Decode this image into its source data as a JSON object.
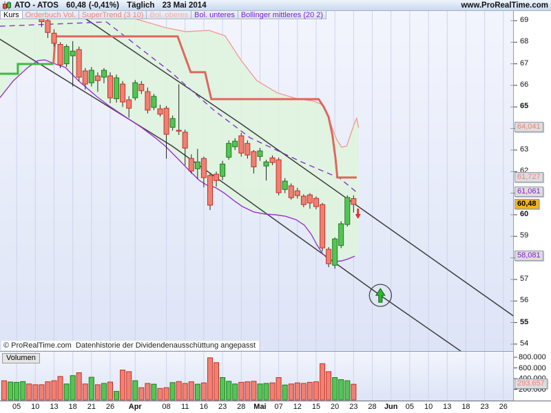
{
  "header": {
    "icon": "candlestick-icon",
    "symbol": "ATO - ATOS",
    "price": "60,48",
    "change": "(-0,41%)",
    "period": "Täglich",
    "date": "23 Mai 2014",
    "site": "www.ProRealTime.com"
  },
  "tabs": [
    {
      "label": "Kurs",
      "color": "#000000",
      "active": true
    },
    {
      "label": "Orderbuch Vol.",
      "color": "#ef837d",
      "active": false
    },
    {
      "label": "SuperTrend (3 10)",
      "color": "#ef837d",
      "active": false
    },
    {
      "label": "Bol. oberes",
      "color": "#f4b0aa",
      "active": false
    },
    {
      "label": "Bol. unteres",
      "color": "#7a1fd0",
      "active": false
    },
    {
      "label": "Bollinger mittleres (20 2)",
      "color": "#7a1fd0",
      "active": false
    }
  ],
  "footer": {
    "copyright": "© ProRealTime.com",
    "note": "Datenhistorie der Dividendenausschüttung angepasst"
  },
  "volume_panel_label": "Volumen",
  "colors": {
    "up_fill": "#55c455",
    "up_stroke": "#1c7a1c",
    "down_fill": "#f08072",
    "down_stroke": "#c03028",
    "wick": "#222222",
    "supertrend": "#e0655c",
    "upper_band": "#f59b94",
    "lower_band": "#9b30d0",
    "middle_band": "#8833cc",
    "trendline": "#3c3c3c",
    "grid": "#cdd4ea",
    "band_fill": "#e0f3de",
    "last_price_bg": "#fcb310",
    "salmon_text": "#f0837c",
    "purple_text": "#8822cc",
    "chart_bg_top": "#f3f5fd",
    "chart_bg_bottom": "#dde4f6"
  },
  "price_axis": {
    "ticks": [
      69,
      68,
      67,
      66,
      65,
      64,
      63,
      62,
      61,
      60,
      59,
      58,
      57,
      56,
      55,
      54
    ],
    "bold_ticks": [
      65,
      60,
      55
    ],
    "badges": [
      {
        "label": "64,041",
        "price": 64.041,
        "fg": "#f0837c",
        "bg": "#dcdcdc",
        "bold": false,
        "meaning": "bollinger-upper-value"
      },
      {
        "label": "61,727",
        "price": 61.727,
        "fg": "#f0837c",
        "bg": "#dcdcdc",
        "bold": false,
        "meaning": "supertrend-value"
      },
      {
        "label": "61,061",
        "price": 61.061,
        "fg": "#8822cc",
        "bg": "#dcdcdc",
        "bold": false,
        "meaning": "bollinger-middle-value"
      },
      {
        "label": "60,48",
        "price": 60.48,
        "fg": "#000000",
        "bg": "#fcb310",
        "bold": true,
        "meaning": "last-price"
      },
      {
        "label": "58,081",
        "price": 58.081,
        "fg": "#8822cc",
        "bg": "#dcdcdc",
        "bold": false,
        "meaning": "bollinger-lower-value"
      }
    ]
  },
  "volume_axis": {
    "ticks": [
      {
        "label": "800.000",
        "value": 800000
      },
      {
        "label": "600.000",
        "value": 600000
      },
      {
        "label": "400.000",
        "value": 400000
      },
      {
        "label": "200.000",
        "value": 200000
      }
    ],
    "badge": {
      "label": "293.657",
      "value": 293657,
      "fg": "#f0837c",
      "bg": "#dcdcdc",
      "meaning": "last-volume"
    }
  },
  "x_axis": {
    "ticks": [
      {
        "day": 2,
        "label": "05",
        "bold": false
      },
      {
        "day": 5,
        "label": "10",
        "bold": false
      },
      {
        "day": 8,
        "label": "13",
        "bold": false
      },
      {
        "day": 11,
        "label": "18",
        "bold": false
      },
      {
        "day": 14,
        "label": "21",
        "bold": false
      },
      {
        "day": 17,
        "label": "26",
        "bold": false
      },
      {
        "day": 21,
        "label": "Apr",
        "bold": true
      },
      {
        "day": 26,
        "label": "08",
        "bold": false
      },
      {
        "day": 29,
        "label": "11",
        "bold": false
      },
      {
        "day": 32,
        "label": "16",
        "bold": false
      },
      {
        "day": 35,
        "label": "23",
        "bold": false
      },
      {
        "day": 38,
        "label": "28",
        "bold": false
      },
      {
        "day": 41,
        "label": "Mai",
        "bold": true
      },
      {
        "day": 44,
        "label": "07",
        "bold": false
      },
      {
        "day": 47,
        "label": "12",
        "bold": false
      },
      {
        "day": 50,
        "label": "15",
        "bold": false
      },
      {
        "day": 53,
        "label": "20",
        "bold": false
      },
      {
        "day": 56,
        "label": "23",
        "bold": false
      },
      {
        "day": 59,
        "label": "28",
        "bold": false
      },
      {
        "day": 62,
        "label": "Jun",
        "bold": true
      },
      {
        "day": 65,
        "label": "05",
        "bold": false
      },
      {
        "day": 68,
        "label": "10",
        "bold": false
      },
      {
        "day": 71,
        "label": "13",
        "bold": false
      },
      {
        "day": 74,
        "label": "18",
        "bold": false
      },
      {
        "day": 77,
        "label": "23",
        "bold": false
      },
      {
        "day": 80,
        "label": "26",
        "bold": false
      }
    ]
  },
  "chart_data": {
    "type": "candlestick+volume",
    "title": "ATO - ATOS Täglich",
    "price_range": [
      54,
      69
    ],
    "grid": "vertical-only",
    "first_candle_day": 6,
    "candles_ohlc": [
      [
        69.35,
        69.55,
        68.7,
        68.95
      ],
      [
        69.0,
        69.2,
        68.2,
        68.45
      ],
      [
        68.42,
        68.6,
        67.8,
        67.95
      ],
      [
        67.9,
        68.0,
        66.8,
        66.95
      ],
      [
        67.0,
        67.9,
        66.85,
        67.8
      ],
      [
        67.37,
        68.05,
        65.95,
        67.59
      ],
      [
        67.66,
        67.8,
        66.2,
        66.38
      ],
      [
        66.67,
        66.8,
        65.8,
        66.06
      ],
      [
        66.12,
        66.85,
        65.95,
        66.7
      ],
      [
        66.44,
        66.6,
        65.7,
        66.22
      ],
      [
        66.38,
        66.8,
        66.1,
        66.7
      ],
      [
        66.44,
        66.6,
        65.17,
        65.42
      ],
      [
        65.38,
        66.5,
        65.2,
        66.35
      ],
      [
        66.06,
        66.2,
        65.0,
        65.23
      ],
      [
        65.33,
        65.5,
        64.5,
        64.94
      ],
      [
        65.42,
        66.25,
        65.3,
        66.12
      ],
      [
        66.05,
        66.2,
        65.6,
        65.75
      ],
      [
        65.71,
        65.9,
        64.7,
        64.85
      ],
      [
        64.98,
        65.6,
        64.85,
        65.49
      ],
      [
        64.91,
        65.1,
        64.55,
        64.66
      ],
      [
        64.94,
        65.05,
        62.6,
        63.73
      ],
      [
        64.05,
        64.6,
        63.9,
        64.46
      ],
      [
        63.92,
        66.05,
        63.7,
        63.88
      ],
      [
        63.83,
        63.95,
        62.29,
        63.09
      ],
      [
        62.61,
        62.8,
        61.9,
        62.03
      ],
      [
        62.13,
        63.05,
        61.65,
        62.45
      ],
      [
        62.61,
        62.7,
        61.27,
        61.72
      ],
      [
        61.82,
        61.9,
        60.22,
        60.44
      ],
      [
        61.88,
        62.0,
        61.3,
        61.59
      ],
      [
        61.78,
        62.5,
        61.6,
        62.35
      ],
      [
        62.67,
        63.45,
        62.55,
        63.31
      ],
      [
        63.15,
        63.55,
        63.0,
        63.41
      ],
      [
        63.66,
        63.8,
        62.7,
        62.86
      ],
      [
        63.31,
        63.45,
        62.6,
        62.77
      ],
      [
        62.93,
        63.0,
        61.91,
        62.22
      ],
      [
        62.7,
        63.1,
        62.5,
        62.96
      ],
      [
        62.26,
        62.55,
        61.59,
        62.45
      ],
      [
        62.64,
        62.75,
        62.3,
        62.42
      ],
      [
        62.55,
        62.65,
        60.9,
        61.02
      ],
      [
        61.17,
        61.7,
        61.0,
        61.56
      ],
      [
        61.34,
        61.45,
        60.7,
        60.79
      ],
      [
        61.11,
        61.25,
        60.75,
        60.89
      ],
      [
        60.86,
        60.95,
        60.35,
        60.47
      ],
      [
        60.92,
        61.0,
        60.28,
        60.54
      ],
      [
        60.76,
        60.85,
        60.25,
        60.38
      ],
      [
        60.47,
        60.55,
        58.3,
        58.46
      ],
      [
        58.4,
        58.5,
        57.57,
        57.73
      ],
      [
        57.66,
        58.95,
        57.5,
        58.88
      ],
      [
        58.57,
        59.7,
        58.45,
        59.58
      ],
      [
        59.55,
        60.9,
        59.45,
        60.8
      ],
      [
        60.75,
        60.9,
        60.1,
        60.48
      ]
    ],
    "volumes": [
      360000,
      335000,
      330000,
      345000,
      300000,
      285000,
      285000,
      340000,
      360000,
      440000,
      300000,
      455000,
      510000,
      300000,
      425000,
      285000,
      310000,
      335000,
      160000,
      560000,
      530000,
      360000,
      230000,
      310000,
      295000,
      215000,
      230000,
      325000,
      345000,
      310000,
      340000,
      295000,
      320000,
      790000,
      700000,
      420000,
      350000,
      300000,
      330000,
      340000,
      350000,
      300000,
      310000,
      320000,
      420000,
      280000,
      300000,
      320000,
      310000,
      330000,
      340000,
      680000,
      530000,
      420000,
      380000,
      360000,
      293657
    ],
    "first_six_volume_dirs": [
      "down",
      "up",
      "up",
      "up",
      "down",
      "down"
    ],
    "lines": {
      "supertrend_up": [
        [
          -0.7,
          66.54
        ],
        [
          2.2,
          66.54
        ],
        [
          2.2,
          66.99
        ],
        [
          7.9,
          66.99
        ]
      ],
      "supertrend_down": [
        [
          7.9,
          66.99
        ],
        [
          8.2,
          68.27
        ],
        [
          27.8,
          68.27
        ],
        [
          29.9,
          66.61
        ],
        [
          32.2,
          66.61
        ],
        [
          33.2,
          65.36
        ],
        [
          50.4,
          65.36
        ],
        [
          51.2,
          65.01
        ],
        [
          52.0,
          64.53
        ],
        [
          52.6,
          63.7
        ],
        [
          53.1,
          62.62
        ],
        [
          53.4,
          61.727
        ],
        [
          56.5,
          61.727
        ]
      ],
      "bollinger_upper": [
        [
          20.9,
          69.1
        ],
        [
          25.8,
          68.68
        ],
        [
          29.1,
          68.49
        ],
        [
          32.8,
          68.55
        ],
        [
          35.4,
          68.3
        ],
        [
          38.0,
          67.15
        ],
        [
          40.5,
          66.22
        ],
        [
          43.8,
          65.65
        ],
        [
          46.8,
          65.39
        ],
        [
          49.6,
          65.27
        ],
        [
          50.9,
          65.11
        ],
        [
          51.8,
          64.63
        ],
        [
          52.5,
          64.08
        ],
        [
          53.3,
          63.48
        ],
        [
          54.1,
          63.13
        ],
        [
          54.9,
          63.19
        ],
        [
          55.5,
          63.7
        ],
        [
          56.1,
          64.21
        ],
        [
          56.5,
          64.47
        ],
        [
          56.8,
          64.041
        ]
      ],
      "bollinger_middle": [
        [
          -0.7,
          68.74
        ],
        [
          16.4,
          68.94
        ],
        [
          26.9,
          66.57
        ],
        [
          33.6,
          64.85
        ],
        [
          39.4,
          63.57
        ],
        [
          47.9,
          62.42
        ],
        [
          53.8,
          61.69
        ],
        [
          56.4,
          61.061
        ]
      ],
      "bollinger_lower": [
        [
          -0.7,
          65.42
        ],
        [
          1.5,
          66.22
        ],
        [
          3.8,
          66.83
        ],
        [
          5.4,
          67.15
        ],
        [
          6.5,
          67.18
        ],
        [
          7.9,
          67.02
        ],
        [
          9.8,
          66.83
        ],
        [
          12.0,
          66.19
        ],
        [
          14.8,
          65.49
        ],
        [
          17.0,
          65.01
        ],
        [
          19.8,
          64.47
        ],
        [
          22.0,
          64.05
        ],
        [
          24.2,
          63.57
        ],
        [
          25.8,
          63.19
        ],
        [
          28.0,
          62.55
        ],
        [
          29.7,
          62.04
        ],
        [
          31.3,
          61.59
        ],
        [
          32.5,
          61.37
        ],
        [
          33.8,
          61.27
        ],
        [
          35.2,
          61.02
        ],
        [
          36.9,
          60.64
        ],
        [
          38.2,
          60.38
        ],
        [
          40.0,
          60.13
        ],
        [
          41.8,
          60.03
        ],
        [
          43.5,
          60.0
        ],
        [
          45.1,
          59.93
        ],
        [
          46.8,
          59.77
        ],
        [
          48.1,
          59.52
        ],
        [
          49.2,
          59.1
        ],
        [
          50.1,
          58.62
        ],
        [
          51.0,
          58.21
        ],
        [
          51.9,
          57.95
        ],
        [
          53.0,
          57.83
        ],
        [
          54.1,
          57.86
        ],
        [
          55.1,
          57.95
        ],
        [
          56.2,
          58.081
        ]
      ],
      "trendline_upper": [
        [
          13.0,
          69.1
        ],
        [
          38.0,
          64.21
        ],
        [
          81.8,
          55.27
        ]
      ],
      "trendline_lower": [
        [
          -0.7,
          68.14
        ],
        [
          26.9,
          63.19
        ],
        [
          60.3,
          56.26
        ],
        [
          73.2,
          53.67
        ]
      ]
    },
    "annotations": [
      {
        "type": "down-arrow",
        "day": 56.7,
        "price": 60.05,
        "color": "#e83030",
        "name": "sell-signal-arrow"
      },
      {
        "type": "circled-up-arrow",
        "day": 60.3,
        "price": 56.26,
        "color": "#2eb82e",
        "name": "buy-target-annotation"
      }
    ]
  }
}
